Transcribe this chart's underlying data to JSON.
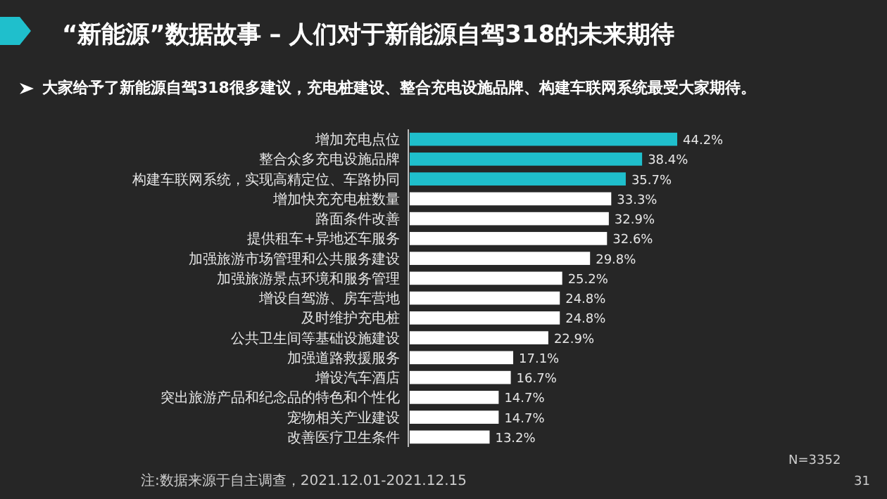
{
  "chart_data": {
    "type": "bar",
    "orientation": "horizontal",
    "title": "“新能源”数据故事 – 人们对于新能源自驾318的未来期待",
    "subtitle": "大家给予了新能源自驾318很多建议，充电桩建设、整合充电设施品牌、构建车联网系统最受大家期待。",
    "categories": [
      "增加充电点位",
      "整合众多充电设施品牌",
      "构建车联网系统，实现高精定位、车路协同",
      "增加快充充电桩数量",
      "路面条件改善",
      "提供租车+异地还车服务",
      "加强旅游市场管理和公共服务建设",
      "加强旅游景点环境和服务管理",
      "增设自驾游、房车营地",
      "及时维护充电桩",
      "公共卫生间等基础设施建设",
      "加强道路救援服务",
      "增设汽车酒店",
      "突出旅游产品和纪念品的特色和个性化",
      "宠物相关产业建设",
      "改善医疗卫生条件"
    ],
    "values": [
      44.2,
      38.4,
      35.7,
      33.3,
      32.9,
      32.6,
      29.8,
      25.2,
      24.8,
      24.8,
      22.9,
      17.1,
      16.7,
      14.7,
      14.7,
      13.2
    ],
    "value_labels": [
      "44.2%",
      "38.4%",
      "35.7%",
      "33.3%",
      "32.9%",
      "32.6%",
      "29.8%",
      "25.2%",
      "24.8%",
      "24.8%",
      "22.9%",
      "17.1%",
      "16.7%",
      "14.7%",
      "14.7%",
      "13.2%"
    ],
    "colors": [
      "#1fbfcc",
      "#1fbfcc",
      "#1fbfcc",
      "#ffffff",
      "#ffffff",
      "#ffffff",
      "#ffffff",
      "#ffffff",
      "#ffffff",
      "#ffffff",
      "#ffffff",
      "#ffffff",
      "#ffffff",
      "#ffffff",
      "#ffffff",
      "#ffffff"
    ],
    "annotations": [
      "N=3352",
      "注:数据来源于自主调查，2021.12.01-2021.12.15",
      "31"
    ]
  }
}
